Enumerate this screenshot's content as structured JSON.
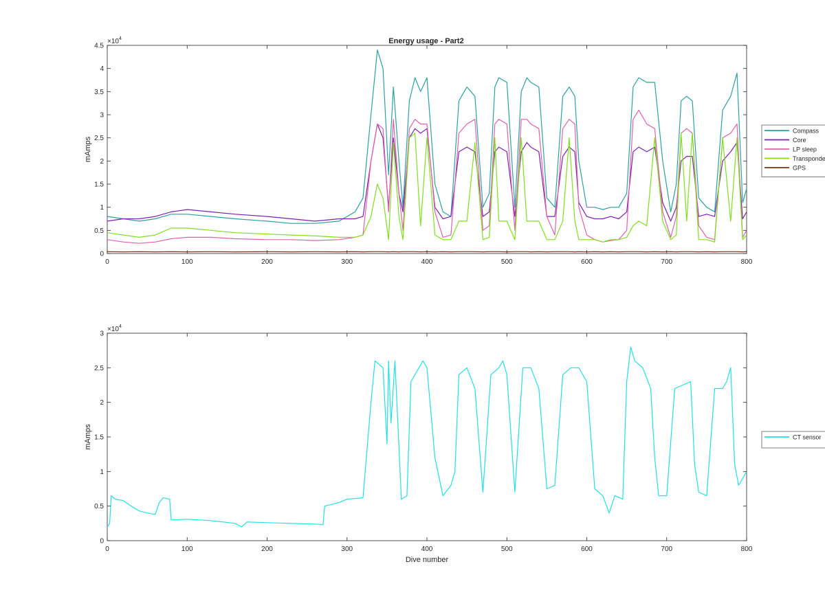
{
  "figure": {
    "title": "Energy usage - Part2",
    "exponent_label": "×10",
    "exponent_power": "4"
  },
  "colors": {
    "Compass": "#2aa1a1",
    "Core": "#7e1fb3",
    "LP sleep": "#e060ac",
    "Transponder": "#7fe01a",
    "GPS": "#7a3410",
    "CT sensor": "#21e0e6",
    "axes": "#262626"
  },
  "chart_data": [
    {
      "type": "line",
      "title": "Energy usage - Part2",
      "xlabel": "",
      "ylabel": "mAmps",
      "xlim": [
        0,
        800
      ],
      "ylim": [
        0,
        45000
      ],
      "xticks": [
        0,
        100,
        200,
        300,
        400,
        500,
        600,
        700,
        800
      ],
      "yticks": [
        0,
        5000,
        10000,
        15000,
        20000,
        25000,
        30000,
        35000,
        40000,
        45000
      ],
      "ytick_labels": [
        "0",
        "0.5",
        "1",
        "1.5",
        "2",
        "2.5",
        "3",
        "3.5",
        "4",
        "4.5"
      ],
      "y_multiplier": "×10^4",
      "grid": false,
      "legend_position": "outside-right",
      "x": [
        0,
        20,
        40,
        60,
        80,
        100,
        130,
        160,
        200,
        230,
        260,
        290,
        310,
        320,
        330,
        338,
        345,
        352,
        358,
        365,
        370,
        378,
        385,
        392,
        400,
        410,
        420,
        430,
        440,
        450,
        460,
        470,
        478,
        485,
        490,
        500,
        510,
        518,
        525,
        530,
        540,
        550,
        560,
        570,
        578,
        585,
        590,
        600,
        610,
        620,
        630,
        640,
        650,
        658,
        665,
        675,
        685,
        695,
        705,
        712,
        718,
        725,
        732,
        740,
        750,
        760,
        770,
        780,
        788,
        795,
        800
      ],
      "series": [
        {
          "name": "Compass",
          "values": [
            8000,
            7500,
            7000,
            7500,
            8500,
            8500,
            8000,
            7500,
            7000,
            6500,
            6500,
            7000,
            9000,
            12000,
            30000,
            44000,
            40000,
            17000,
            36000,
            20000,
            10000,
            33000,
            38000,
            35000,
            38000,
            15000,
            9000,
            8000,
            33000,
            36000,
            34000,
            10000,
            13000,
            36000,
            38000,
            37000,
            10000,
            35000,
            38000,
            37000,
            36000,
            12000,
            10000,
            34000,
            36000,
            34000,
            20000,
            10000,
            10000,
            9500,
            10000,
            10000,
            13000,
            36000,
            38000,
            37000,
            37000,
            20000,
            9000,
            15000,
            33000,
            34000,
            33000,
            12000,
            10000,
            9000,
            31000,
            34000,
            39000,
            11000,
            14000
          ]
        },
        {
          "name": "Core",
          "values": [
            7000,
            7500,
            7500,
            8000,
            9000,
            9500,
            9000,
            8500,
            8000,
            7500,
            7000,
            7500,
            7500,
            8000,
            20000,
            28000,
            25000,
            10000,
            25000,
            13000,
            9000,
            25000,
            27000,
            26000,
            27000,
            10000,
            7500,
            8000,
            22000,
            23000,
            22000,
            8000,
            9000,
            22000,
            23000,
            22000,
            8000,
            22000,
            24000,
            23000,
            22000,
            8000,
            8000,
            21000,
            23000,
            22000,
            11000,
            8000,
            7500,
            7500,
            8000,
            7500,
            9000,
            22000,
            23000,
            22000,
            23000,
            11000,
            7000,
            10000,
            20000,
            21000,
            21000,
            8000,
            8500,
            8000,
            20000,
            22000,
            24000,
            7500,
            9000
          ]
        },
        {
          "name": "LP sleep",
          "values": [
            3000,
            2500,
            2200,
            2500,
            3200,
            3500,
            3500,
            3200,
            3000,
            3000,
            2800,
            3000,
            3500,
            4000,
            20000,
            28000,
            27000,
            9000,
            29000,
            13000,
            5000,
            27000,
            29000,
            28000,
            28000,
            9000,
            3500,
            4000,
            26000,
            28000,
            29000,
            5000,
            6000,
            28000,
            29000,
            28000,
            5000,
            29000,
            29000,
            28000,
            27000,
            8000,
            4000,
            27000,
            29000,
            28000,
            10000,
            4000,
            3000,
            2500,
            2800,
            3000,
            5000,
            29000,
            31000,
            28000,
            27000,
            9000,
            3500,
            8000,
            26000,
            27000,
            26000,
            6000,
            3500,
            3000,
            25000,
            26000,
            28000,
            3500,
            5000
          ]
        },
        {
          "name": "Transponder",
          "values": [
            4500,
            4000,
            3500,
            4000,
            5500,
            5500,
            5000,
            4500,
            4200,
            4000,
            3800,
            3500,
            3500,
            4000,
            8000,
            15000,
            12000,
            3000,
            24000,
            8000,
            3000,
            25000,
            26000,
            6000,
            25000,
            4000,
            3000,
            3000,
            7000,
            7000,
            24000,
            3000,
            3500,
            25000,
            7000,
            7000,
            3000,
            25000,
            7000,
            7000,
            7000,
            3000,
            3000,
            7000,
            25000,
            7000,
            3000,
            3000,
            3000,
            2500,
            3000,
            3000,
            3500,
            6000,
            7000,
            6000,
            25000,
            7000,
            3000,
            4000,
            26000,
            7000,
            26000,
            3000,
            3000,
            2500,
            25000,
            7000,
            25000,
            3000,
            4000
          ]
        },
        {
          "name": "GPS",
          "values": [
            400,
            350,
            400,
            350,
            400,
            350,
            400,
            350,
            400,
            350,
            400,
            350,
            400,
            350,
            400,
            400,
            400,
            350,
            400,
            350,
            400,
            400,
            400,
            350,
            400,
            350,
            400,
            350,
            400,
            400,
            400,
            350,
            400,
            400,
            400,
            350,
            400,
            400,
            400,
            350,
            400,
            350,
            400,
            400,
            400,
            350,
            400,
            350,
            400,
            350,
            400,
            350,
            400,
            400,
            400,
            350,
            400,
            350,
            400,
            350,
            400,
            400,
            400,
            350,
            400,
            350,
            400,
            400,
            400,
            350,
            400
          ]
        }
      ]
    },
    {
      "type": "line",
      "title": "",
      "xlabel": "Dive number",
      "ylabel": "mAmps",
      "xlim": [
        0,
        800
      ],
      "ylim": [
        0,
        30000
      ],
      "xticks": [
        0,
        100,
        200,
        300,
        400,
        500,
        600,
        700,
        800
      ],
      "yticks": [
        0,
        5000,
        10000,
        15000,
        20000,
        25000,
        30000
      ],
      "ytick_labels": [
        "0",
        "0.5",
        "1",
        "1.5",
        "2",
        "2.5",
        "3"
      ],
      "y_multiplier": "×10^4",
      "grid": false,
      "legend_position": "outside-right",
      "x": [
        0,
        3,
        5,
        10,
        20,
        30,
        40,
        50,
        60,
        65,
        70,
        78,
        80,
        100,
        130,
        160,
        168,
        175,
        200,
        230,
        260,
        270,
        272,
        290,
        300,
        320,
        330,
        335,
        345,
        350,
        352,
        355,
        360,
        368,
        375,
        380,
        390,
        395,
        400,
        410,
        420,
        430,
        435,
        440,
        450,
        460,
        470,
        480,
        490,
        495,
        500,
        510,
        520,
        530,
        540,
        550,
        560,
        570,
        580,
        590,
        595,
        600,
        610,
        620,
        628,
        635,
        645,
        650,
        655,
        660,
        670,
        680,
        685,
        690,
        700,
        710,
        720,
        730,
        735,
        740,
        750,
        760,
        770,
        775,
        780,
        785,
        790,
        795,
        800
      ],
      "series": [
        {
          "name": "CT sensor",
          "values": [
            2000,
            2500,
            6500,
            6000,
            5800,
            5000,
            4300,
            4000,
            3800,
            5500,
            6200,
            6000,
            3000,
            3100,
            2900,
            2500,
            2000,
            2700,
            2600,
            2500,
            2400,
            2300,
            5000,
            5500,
            6000,
            6200,
            20000,
            26000,
            25000,
            14000,
            26000,
            17000,
            26000,
            6000,
            6500,
            23000,
            25000,
            26000,
            25000,
            12000,
            6500,
            8000,
            10000,
            24000,
            25000,
            22000,
            7000,
            24000,
            25000,
            26000,
            24000,
            7000,
            25000,
            25000,
            22000,
            7500,
            8000,
            24000,
            25000,
            25000,
            24000,
            23000,
            7500,
            6500,
            4000,
            6500,
            6000,
            23000,
            28000,
            26000,
            25000,
            22000,
            12000,
            6500,
            6500,
            22000,
            22500,
            23000,
            11000,
            7000,
            6500,
            22000,
            22000,
            23000,
            25000,
            11000,
            8000,
            9000,
            10000
          ]
        }
      ]
    }
  ]
}
